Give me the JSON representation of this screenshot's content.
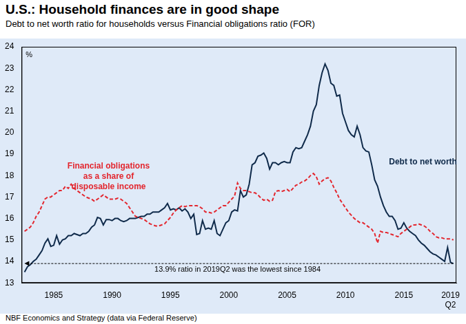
{
  "chart_data": {
    "type": "line",
    "title": "U.S.: Household finances are in good shape",
    "subtitle": "Debt to net worth ratio for households versus Financial obligations ratio (FOR)",
    "source": "NBF Economics and Strategy (data via Federal Reserve)",
    "y_label": "%",
    "x": [
      1982.5,
      1982.75,
      1983,
      1983.25,
      1983.5,
      1983.75,
      1984,
      1984.25,
      1984.5,
      1984.75,
      1985,
      1985.25,
      1985.5,
      1985.75,
      1986,
      1986.25,
      1986.5,
      1986.75,
      1987,
      1987.25,
      1987.5,
      1987.75,
      1988,
      1988.25,
      1988.5,
      1988.75,
      1989,
      1989.25,
      1989.5,
      1989.75,
      1990,
      1990.25,
      1990.5,
      1990.75,
      1991,
      1991.25,
      1991.5,
      1991.75,
      1992,
      1992.25,
      1992.5,
      1992.75,
      1993,
      1993.25,
      1993.5,
      1993.75,
      1994,
      1994.25,
      1994.5,
      1994.75,
      1995,
      1995.25,
      1995.5,
      1995.75,
      1996,
      1996.25,
      1996.5,
      1996.75,
      1997,
      1997.25,
      1997.5,
      1997.75,
      1998,
      1998.25,
      1998.5,
      1998.75,
      1999,
      1999.25,
      1999.5,
      1999.75,
      2000,
      2000.25,
      2000.5,
      2000.75,
      2001,
      2001.25,
      2001.5,
      2001.75,
      2002,
      2002.25,
      2002.5,
      2002.75,
      2003,
      2003.25,
      2003.5,
      2003.75,
      2004,
      2004.25,
      2004.5,
      2004.75,
      2005,
      2005.25,
      2005.5,
      2005.75,
      2006,
      2006.25,
      2006.5,
      2006.75,
      2007,
      2007.25,
      2007.5,
      2007.75,
      2008,
      2008.25,
      2008.5,
      2008.75,
      2009,
      2009.25,
      2009.5,
      2009.75,
      2010,
      2010.25,
      2010.5,
      2010.75,
      2011,
      2011.25,
      2011.5,
      2011.75,
      2012,
      2012.25,
      2012.5,
      2012.75,
      2013,
      2013.25,
      2013.5,
      2013.75,
      2014,
      2014.25,
      2014.5,
      2014.75,
      2015,
      2015.25,
      2015.5,
      2015.75,
      2016,
      2016.25,
      2016.5,
      2016.75,
      2017,
      2017.25,
      2017.5,
      2017.75,
      2018,
      2018.25,
      2018.5,
      2018.75,
      2019,
      2019.25
    ],
    "series": [
      {
        "name": "Financial obligations\nas a share of\ndisposable income",
        "color": "#e3262e",
        "line_style": "dashed",
        "values": [
          15.4,
          15.5,
          15.6,
          15.8,
          16.1,
          16.3,
          16.6,
          16.9,
          17.0,
          17.0,
          17.1,
          17.2,
          17.3,
          17.3,
          17.5,
          17.4,
          17.6,
          17.4,
          17.3,
          17.2,
          17.1,
          17.0,
          16.95,
          16.9,
          16.8,
          16.9,
          17.0,
          17.1,
          17.0,
          16.9,
          16.9,
          16.9,
          16.95,
          16.9,
          16.8,
          16.7,
          16.5,
          16.3,
          16.1,
          16.05,
          16.0,
          15.95,
          15.85,
          15.75,
          15.7,
          15.65,
          15.65,
          15.7,
          15.75,
          15.9,
          16.05,
          16.25,
          16.4,
          16.5,
          16.6,
          16.55,
          16.6,
          16.6,
          16.6,
          16.6,
          16.55,
          16.45,
          16.3,
          16.3,
          16.25,
          16.3,
          16.4,
          16.5,
          16.6,
          16.6,
          16.75,
          16.9,
          17.05,
          17.65,
          17.4,
          17.3,
          17.3,
          17.25,
          17.2,
          17.2,
          17.1,
          16.95,
          16.85,
          16.9,
          16.8,
          16.85,
          17.25,
          17.3,
          17.25,
          17.3,
          17.35,
          17.25,
          17.4,
          17.55,
          17.6,
          17.7,
          17.75,
          17.85,
          18.0,
          18.1,
          17.95,
          17.6,
          17.75,
          17.85,
          17.9,
          17.75,
          17.45,
          17.2,
          16.9,
          16.7,
          16.5,
          16.3,
          16.15,
          16.0,
          15.9,
          15.8,
          15.8,
          15.7,
          15.6,
          15.5,
          15.3,
          14.85,
          15.4,
          15.35,
          15.35,
          15.3,
          15.25,
          15.2,
          15.15,
          15.3,
          15.4,
          15.5,
          15.6,
          15.7,
          15.7,
          15.75,
          15.7,
          15.65,
          15.55,
          15.4,
          15.3,
          15.15,
          15.1,
          15.1,
          15.05,
          15.05,
          15.05,
          15.0
        ]
      },
      {
        "name": "Debt to net worth",
        "color": "#0f2a4a",
        "line_style": "solid",
        "values": [
          13.5,
          13.75,
          13.85,
          14.0,
          14.1,
          14.3,
          14.5,
          14.85,
          15.05,
          14.7,
          14.75,
          15.2,
          14.8,
          15.0,
          15.05,
          15.2,
          15.2,
          15.3,
          15.25,
          15.2,
          15.3,
          15.3,
          15.4,
          15.6,
          15.7,
          16.05,
          16.0,
          15.7,
          15.95,
          15.95,
          15.9,
          16.0,
          16.0,
          15.9,
          15.85,
          15.9,
          16.0,
          16.0,
          16.0,
          16.05,
          16.1,
          16.1,
          16.2,
          16.2,
          16.3,
          16.3,
          16.3,
          16.4,
          16.5,
          16.7,
          16.4,
          16.45,
          16.4,
          16.5,
          16.35,
          16.45,
          16.3,
          16.0,
          16.2,
          15.25,
          15.3,
          15.9,
          15.5,
          15.55,
          15.5,
          15.9,
          15.3,
          15.2,
          15.5,
          15.8,
          15.9,
          16.3,
          16.4,
          16.35,
          17.3,
          17.0,
          17.1,
          17.6,
          18.5,
          18.6,
          18.9,
          18.95,
          19.05,
          18.8,
          18.3,
          18.6,
          18.6,
          18.5,
          18.6,
          18.65,
          18.6,
          18.6,
          19.1,
          19.3,
          19.25,
          19.3,
          19.6,
          19.9,
          20.3,
          21.0,
          21.3,
          22.2,
          22.8,
          23.2,
          22.9,
          22.3,
          22.2,
          21.7,
          21.75,
          20.9,
          20.5,
          20.1,
          19.9,
          19.8,
          20.3,
          19.9,
          19.3,
          19.15,
          19.1,
          18.5,
          17.8,
          17.5,
          17.0,
          16.6,
          16.3,
          16.1,
          16.1,
          15.9,
          15.5,
          15.55,
          15.8,
          15.55,
          15.4,
          15.3,
          15.2,
          15.0,
          14.85,
          14.75,
          14.6,
          14.45,
          14.35,
          14.3,
          14.2,
          14.1,
          14.0,
          14.65,
          13.95,
          13.9
        ]
      }
    ],
    "xlim": [
      1982.25,
      2019.5
    ],
    "xticks": [
      1985,
      1990,
      1995,
      2000,
      2005,
      2010,
      2015,
      {
        "value": 2019,
        "label": "2019\nQ2"
      }
    ],
    "ylim": [
      13,
      24
    ],
    "yticks": [
      13,
      14,
      15,
      16,
      17,
      18,
      19,
      20,
      21,
      22,
      23,
      24
    ],
    "grid": false,
    "annotations": [
      {
        "text": "13.9% ratio in 2019Q2 was the lowest since 1984",
        "y": 13.9
      }
    ]
  }
}
